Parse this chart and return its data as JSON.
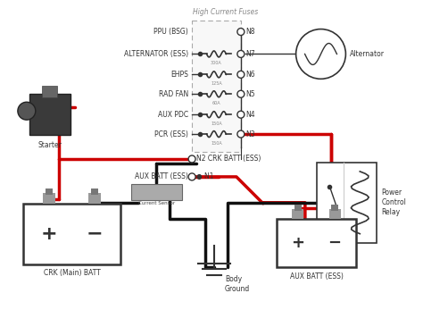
{
  "bg_color": "#ffffff",
  "fuse_box_label": "High Current Fuses",
  "fuses": [
    {
      "label": "PPU (BSG)",
      "node": "N8",
      "amp": ""
    },
    {
      "label": "ALTERNATOR (ESS)",
      "node": "N7",
      "amp": "300A"
    },
    {
      "label": "EHPS",
      "node": "N6",
      "amp": "125A"
    },
    {
      "label": "RAD FAN",
      "node": "N5",
      "amp": "60A"
    },
    {
      "label": "AUX PDC",
      "node": "N4",
      "amp": "150A"
    },
    {
      "label": "PCR (ESS)",
      "node": "N3",
      "amp": "150A"
    }
  ],
  "red": "#cc0000",
  "black": "#111111",
  "dark": "#333333",
  "gray": "#888888",
  "ltgray": "#aaaaaa",
  "termgray": "#999999"
}
